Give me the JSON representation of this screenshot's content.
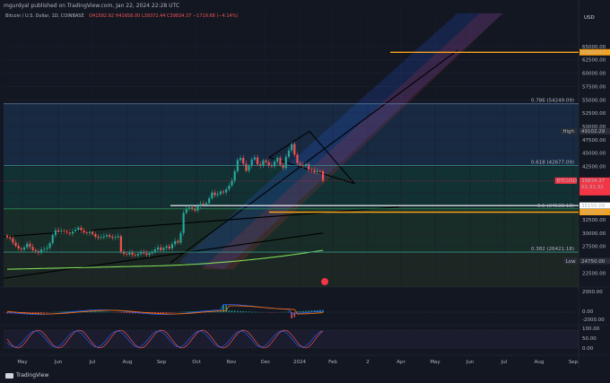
{
  "header": {
    "publisher": "mgurdyal published on TradingView.com, Jan 22, 2024 22:28 UTC"
  },
  "legend": {
    "symbol": "Bitcoin / U.S. Dollar, 1D, COINBASE",
    "ohlc": "O41582.92 H41658.00 L39372.44 C39834.37 −1719.68 (−4.14%)"
  },
  "colors": {
    "background": "#131722",
    "candle_up": "#26a69a",
    "candle_down": "#ef5350",
    "fib_orange": "#f7a21b",
    "price_badge": "#f23645",
    "ma_green": "#7ed957",
    "channel_blue": "#2962ff"
  },
  "footer": {
    "brand": "TradingView"
  },
  "chart_data": {
    "type": "candlestick",
    "currency": "USD",
    "y_ticks": [
      65000,
      62500,
      60000,
      57500,
      55000,
      52500,
      50000,
      47500,
      45000,
      42500,
      40000,
      37500,
      35000,
      32500,
      30000,
      27500,
      25000,
      22500
    ],
    "x_ticks": [
      "May",
      "Jun",
      "Jul",
      "Aug",
      "Sep",
      "Oct",
      "Nov",
      "Dec",
      "2024",
      "Feb",
      "2",
      "Apr",
      "May",
      "Jun",
      "Jul",
      "Aug",
      "Sep"
    ],
    "ylim": [
      20200,
      67000
    ],
    "levels": [
      {
        "label": "0.786 (54249.09)",
        "value": 54249.09
      },
      {
        "label": "0.618 (42677.09)",
        "value": 42677.09
      },
      {
        "label": "0.5 (34538.18)",
        "value": 34538.18
      },
      {
        "label": "0.382 (26421.18)",
        "value": 26421.18
      }
    ],
    "price_labels": [
      {
        "text": "63924.43",
        "value": 63924.43,
        "kind": "target"
      },
      {
        "text": "49102.29",
        "value": 49102.29,
        "kind": "high",
        "tag": "High"
      },
      {
        "text": "39834.37",
        "value": 39834.37,
        "kind": "last",
        "tag": "BTCUSD",
        "countdown": "01:31:32"
      },
      {
        "text": "35155.09",
        "value": 35155.09,
        "kind": "white"
      },
      {
        "text": "33921.24",
        "value": 33921.24,
        "kind": "orange"
      },
      {
        "text": "24750.00",
        "value": 24750.0,
        "kind": "low",
        "tag": "Low"
      }
    ],
    "channel_note": "",
    "macd_ticks": [
      "2000.00",
      "0.00",
      "-2000.00"
    ],
    "rsi_ticks": [
      "100.00",
      "50.00",
      "0.00"
    ],
    "closes": [
      29200,
      29000,
      28200,
      27600,
      27100,
      26900,
      27300,
      28000,
      27400,
      26800,
      26600,
      26300,
      26900,
      27000,
      27200,
      28100,
      29600,
      30500,
      30200,
      30400,
      30300,
      30100,
      29900,
      30300,
      30600,
      31000,
      30500,
      30100,
      30000,
      30200,
      29800,
      29300,
      29100,
      29200,
      29400,
      29600,
      29300,
      29100,
      29200,
      29400,
      26500,
      26100,
      26000,
      26300,
      25900,
      25800,
      26100,
      26400,
      26200,
      25900,
      26200,
      26500,
      26900,
      27300,
      26800,
      27200,
      27500,
      27100,
      27900,
      28500,
      28200,
      30000,
      33800,
      34500,
      34800,
      34600,
      34200,
      35100,
      35500,
      35300,
      35600,
      36500,
      37600,
      37100,
      37300,
      37800,
      37600,
      38200,
      38900,
      39800,
      41600,
      43700,
      44100,
      43000,
      41700,
      42600,
      43800,
      44200,
      42900,
      42600,
      43600,
      43300,
      42700,
      42500,
      43400,
      44100,
      42800,
      42200,
      44300,
      45500,
      46700,
      44700,
      43100,
      42800,
      42600,
      42900,
      41900,
      41800,
      41400,
      41600,
      41580,
      39834
    ]
  }
}
